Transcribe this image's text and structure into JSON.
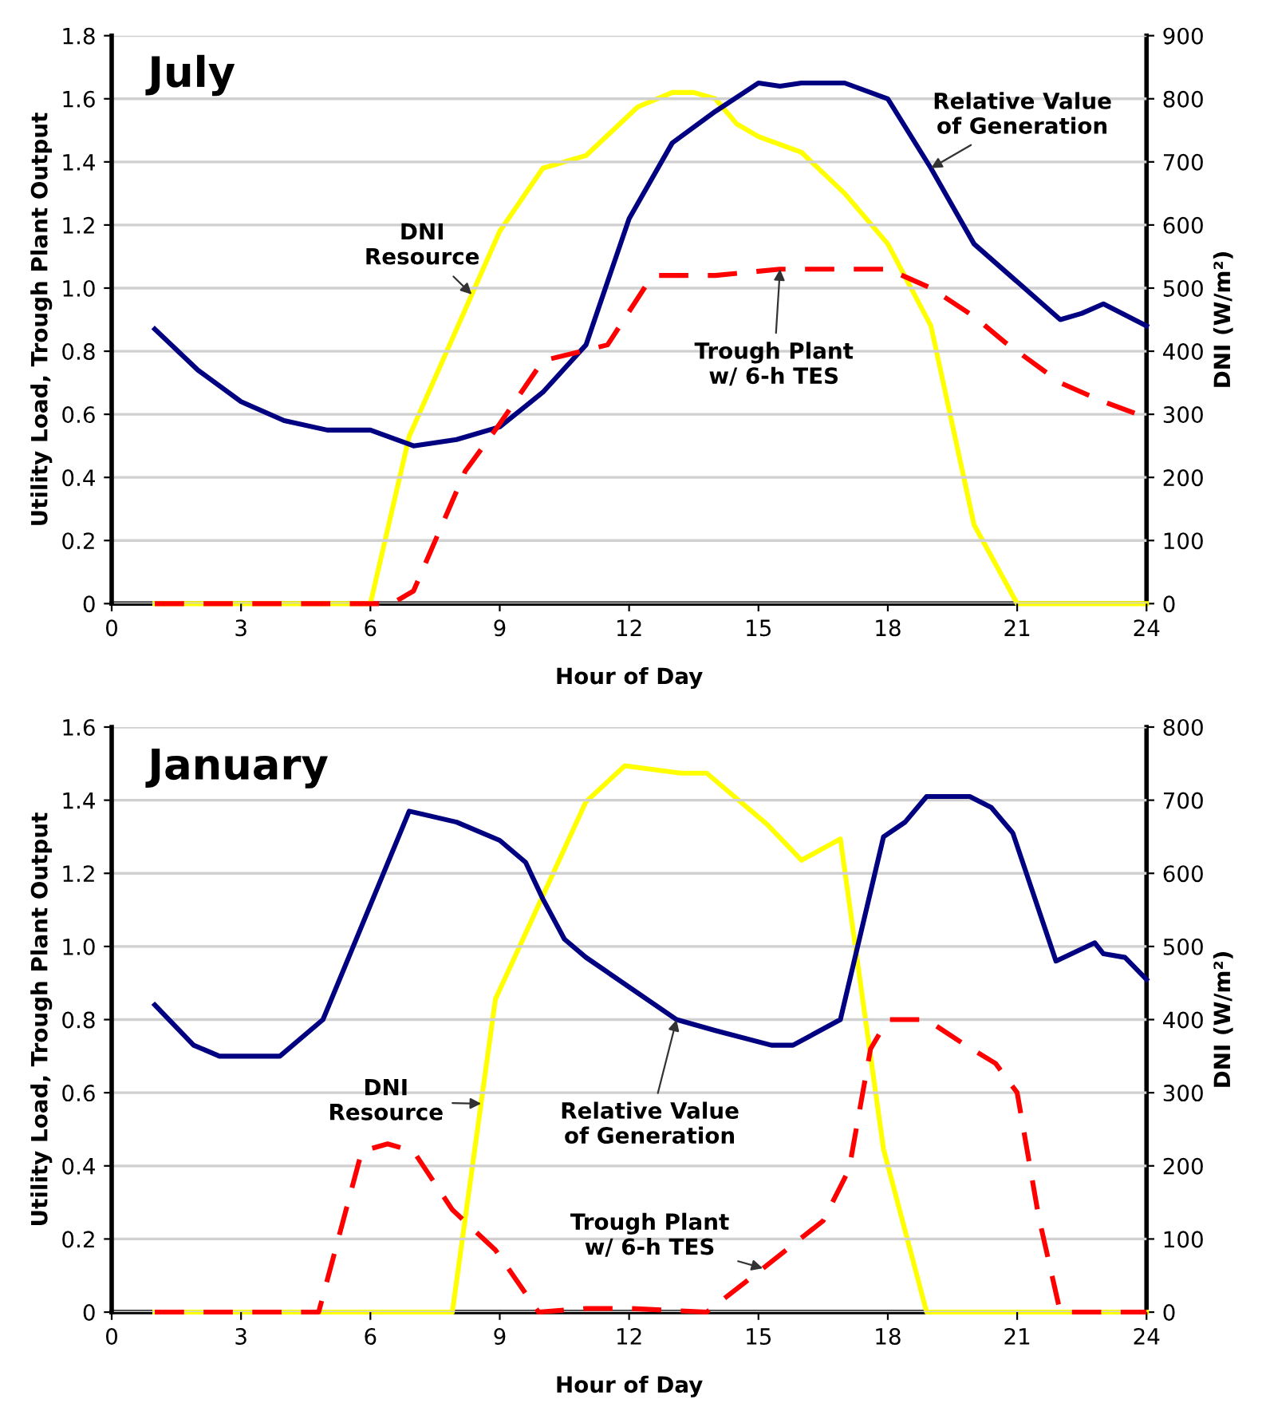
{
  "chart_data": [
    {
      "type": "line",
      "title": "July",
      "xlabel": "Hour of Day",
      "ylabel": "Utility Load, Trough Plant Output",
      "y2label": "DNI (W/m²)",
      "xlim": [
        0,
        24
      ],
      "xticks": [
        0,
        3,
        6,
        9,
        12,
        15,
        18,
        21,
        24
      ],
      "ylim": [
        0,
        1.8
      ],
      "yticks": [
        0,
        0.2,
        0.4,
        0.6,
        0.8,
        {
          "value": 1.0,
          "label": "1.0"
        },
        1.2,
        1.4,
        1.6,
        1.8
      ],
      "y2lim": [
        0,
        900
      ],
      "y2ticks": [
        0,
        100,
        200,
        300,
        400,
        500,
        600,
        700,
        800,
        900
      ],
      "grid": "y",
      "marker": "none",
      "series": [
        {
          "color": "#ffff00",
          "axis": "y2",
          "line_style": "solid",
          "x": [
            1,
            2,
            3,
            4,
            5,
            6,
            6.9,
            9,
            10,
            11,
            12.2,
            13,
            13.5,
            14,
            14.5,
            15,
            16,
            17,
            18,
            19,
            20,
            21,
            22,
            23,
            24
          ],
          "values": [
            0,
            0,
            0,
            0,
            0,
            0,
            265,
            590,
            690,
            710,
            787,
            810,
            810,
            800,
            760,
            740,
            715,
            650,
            570,
            440,
            125,
            0,
            0,
            0,
            0
          ]
        },
        {
          "color": "#000080",
          "axis": "y",
          "line_style": "solid",
          "x": [
            1,
            2,
            3,
            4,
            5,
            6,
            7,
            8,
            9,
            10,
            11,
            12,
            13,
            14,
            15,
            15.5,
            16,
            17,
            18,
            19,
            20,
            21,
            22,
            22.5,
            23,
            24
          ],
          "values": [
            0.87,
            0.74,
            0.64,
            0.58,
            0.55,
            0.55,
            0.5,
            0.52,
            0.56,
            0.67,
            0.82,
            1.22,
            1.46,
            1.56,
            1.65,
            1.64,
            1.65,
            1.65,
            1.6,
            1.38,
            1.14,
            1.02,
            0.9,
            0.92,
            0.95,
            0.88
          ]
        },
        {
          "color": "#ff0000",
          "axis": "y",
          "line_style": "dashed",
          "x": [
            1,
            2,
            3,
            4,
            5,
            6,
            6.5,
            7,
            8.2,
            9,
            10,
            11.5,
            12.4,
            12.6,
            14,
            15.5,
            16,
            18,
            19,
            20,
            20.7,
            22,
            23,
            24
          ],
          "values": [
            0,
            0,
            0,
            0,
            0,
            0,
            0,
            0.04,
            0.42,
            0.57,
            0.77,
            0.82,
            1.01,
            1.04,
            1.04,
            1.06,
            1.06,
            1.06,
            1.0,
            0.91,
            0.83,
            0.7,
            0.64,
            0.59
          ]
        }
      ],
      "annotations": [
        {
          "text": "DNI\nResource",
          "x": 8.35,
          "y": 0.98
        },
        {
          "text": "Relative Value\nof Generation",
          "x": 19,
          "y": 1.38
        },
        {
          "text": "Trough Plant\nw/ 6-h TES",
          "x": 15.5,
          "y": 1.06
        }
      ]
    },
    {
      "type": "line",
      "title": "January",
      "xlabel": "Hour of Day",
      "ylabel": "Utility Load, Trough Plant Output",
      "y2label": "DNI (W/m²)",
      "xlim": [
        0,
        24
      ],
      "xticks": [
        0,
        3,
        6,
        9,
        12,
        15,
        18,
        21,
        24
      ],
      "ylim": [
        0,
        1.6
      ],
      "yticks": [
        0,
        0.2,
        0.4,
        0.6,
        0.8,
        {
          "value": 1.0,
          "label": "1.0"
        },
        1.2,
        1.4,
        1.6
      ],
      "y2lim": [
        0,
        800
      ],
      "y2ticks": [
        0,
        100,
        200,
        300,
        400,
        500,
        600,
        700,
        800
      ],
      "grid": "y",
      "marker": "none",
      "series": [
        {
          "color": "#ffff00",
          "axis": "y2",
          "line_style": "solid",
          "x": [
            1,
            2,
            3,
            4,
            5,
            6,
            7,
            7.9,
            8.9,
            11,
            11.9,
            13.2,
            13.8,
            15.2,
            16,
            16.9,
            17.9,
            18.9,
            20,
            21,
            22,
            23,
            24
          ],
          "values": [
            0,
            0,
            0,
            0,
            0,
            0,
            0,
            0,
            428,
            698,
            747,
            737,
            737,
            667,
            618,
            647,
            223,
            0,
            0,
            0,
            0,
            0,
            0
          ]
        },
        {
          "color": "#000080",
          "axis": "y",
          "line_style": "solid",
          "x": [
            1,
            1.9,
            2.5,
            3.9,
            4.9,
            6.9,
            8,
            9,
            9.6,
            10,
            10.5,
            11,
            13.1,
            14,
            15.3,
            15.8,
            16.9,
            17.9,
            18.4,
            18.9,
            19.9,
            20.4,
            20.9,
            21.9,
            22.8,
            23,
            23.5,
            24
          ],
          "values": [
            0.84,
            0.73,
            0.7,
            0.7,
            0.8,
            1.37,
            1.34,
            1.29,
            1.23,
            1.13,
            1.02,
            0.97,
            0.8,
            0.77,
            0.73,
            0.73,
            0.8,
            1.3,
            1.34,
            1.41,
            1.41,
            1.38,
            1.31,
            0.96,
            1.01,
            0.98,
            0.97,
            0.91
          ]
        },
        {
          "color": "#ff0000",
          "axis": "y",
          "line_style": "dashed",
          "x": [
            1,
            2,
            3,
            4,
            4.8,
            5.8,
            6.4,
            7,
            7.9,
            8.9,
            9.9,
            11,
            12,
            13.8,
            15,
            16.5,
            17.1,
            17.6,
            18,
            18.9,
            19.8,
            20.5,
            21,
            21.5,
            22,
            23,
            24
          ],
          "values": [
            0,
            0,
            0,
            0,
            0,
            0.44,
            0.46,
            0.44,
            0.28,
            0.17,
            0,
            0.01,
            0.01,
            0,
            0.11,
            0.25,
            0.39,
            0.72,
            0.8,
            0.8,
            0.73,
            0.68,
            0.6,
            0.26,
            0,
            0,
            0
          ]
        }
      ],
      "annotations": [
        {
          "text": "DNI\nResource",
          "x": 8.57,
          "y": 0.57
        },
        {
          "text": "Relative Value\nof Generation",
          "x": 13.1,
          "y": 0.8
        },
        {
          "text": "Trough Plant\nw/ 6-h TES",
          "x": 15.1,
          "y": 0.12
        }
      ]
    }
  ]
}
